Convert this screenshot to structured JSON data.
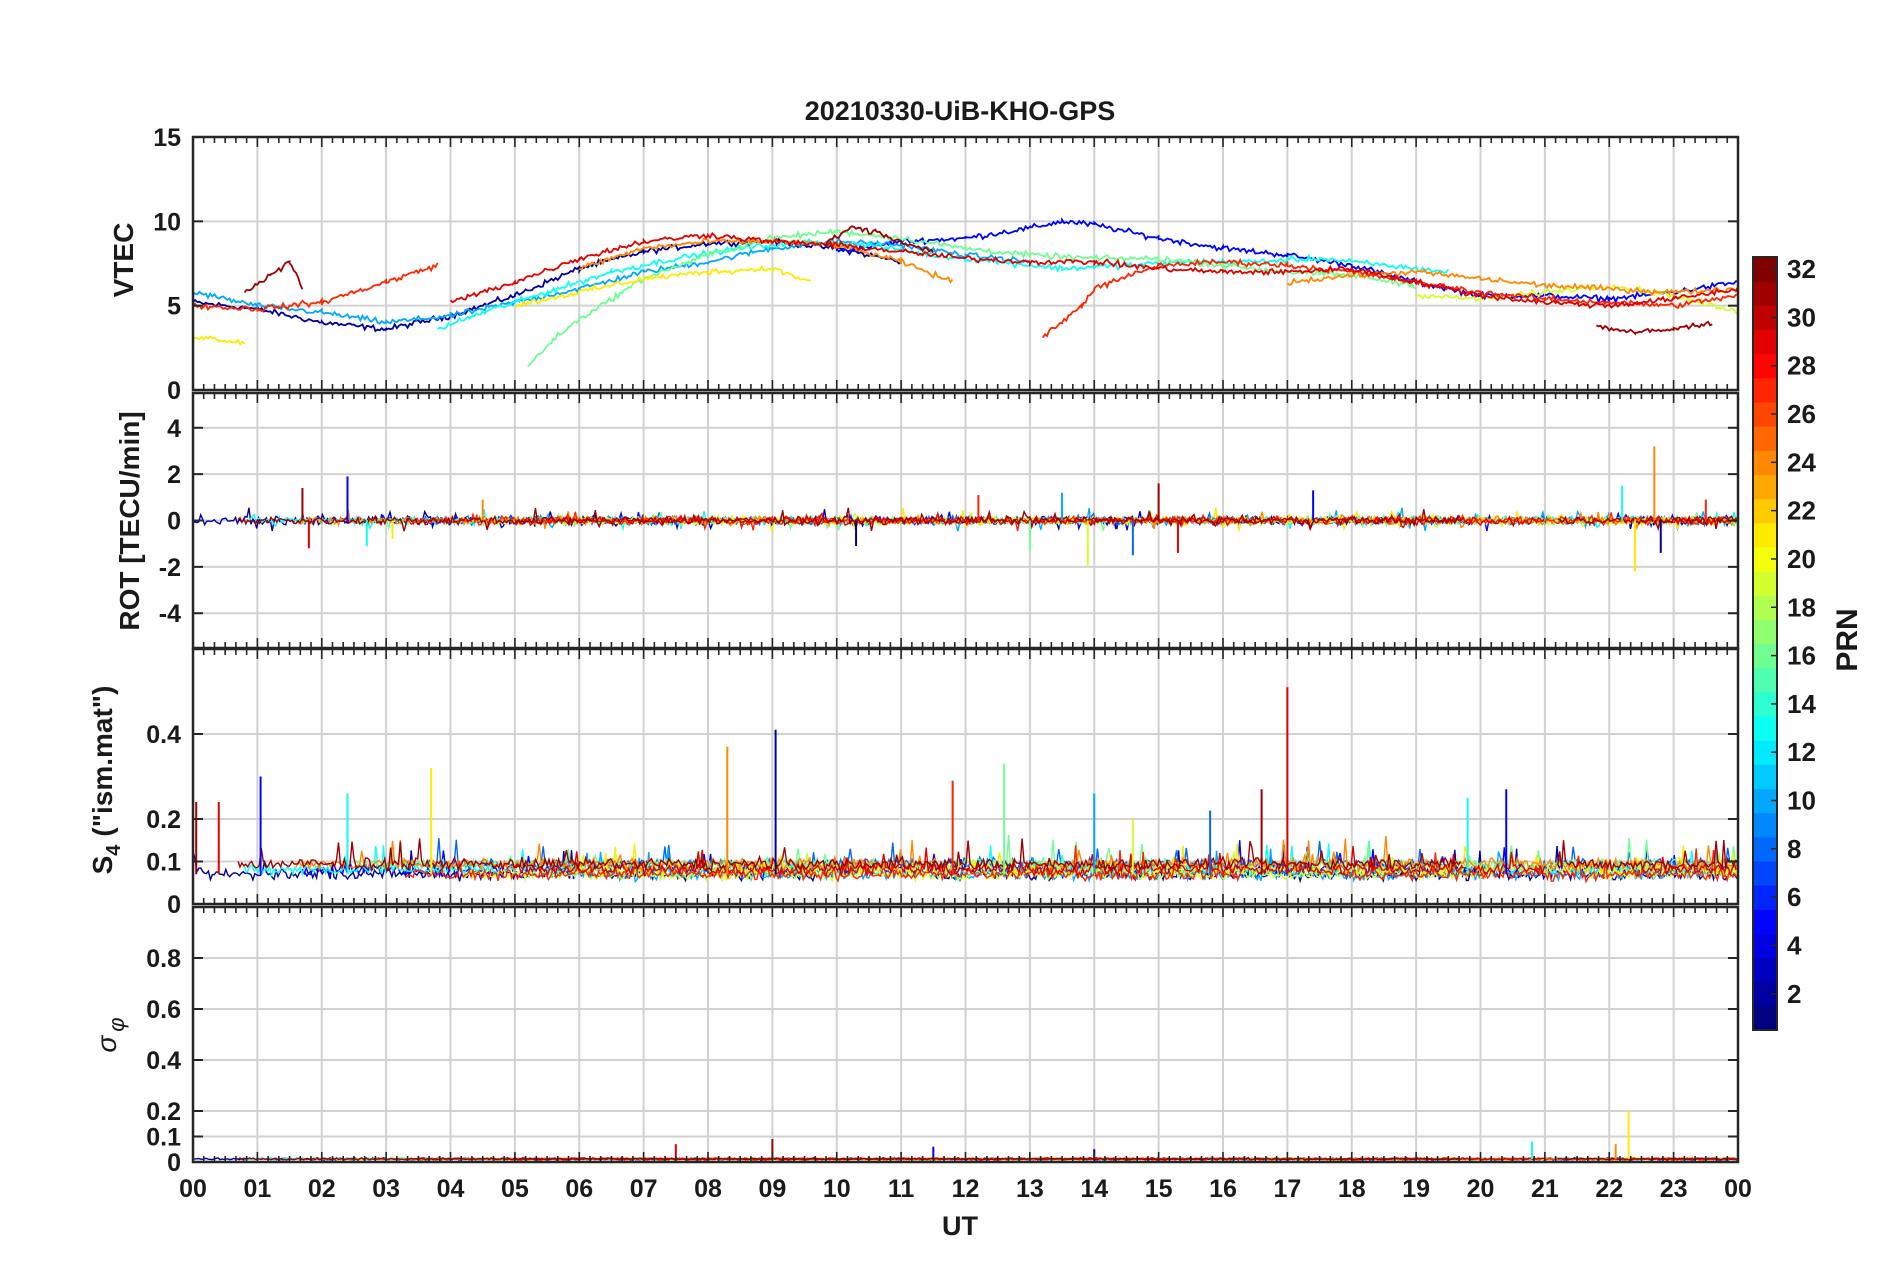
{
  "chart_data": [
    {
      "type": "line",
      "title": "20210330-UiB-KHO-GPS",
      "ylabel": "VTEC",
      "ylim": [
        0,
        15
      ],
      "yticks": [
        0,
        5,
        10,
        15
      ],
      "xlim": [
        0,
        24
      ],
      "series_color": "PRN (jet colormap 1-32)",
      "note": "many overlapping PRN traces; values approximate",
      "series": [
        {
          "name": "PRN 2",
          "x": [
            0,
            1,
            2,
            3,
            4,
            5,
            6,
            7,
            8,
            9,
            10,
            11
          ],
          "y": [
            5.2,
            4.8,
            4.0,
            3.6,
            4.4,
            5.6,
            7.2,
            8.2,
            8.7,
            8.8,
            8.4,
            7.6
          ]
        },
        {
          "name": "PRN 5",
          "x": [
            10,
            11,
            12,
            13,
            13.5,
            14,
            15,
            16,
            17,
            18,
            19,
            20,
            21,
            22,
            23,
            24
          ],
          "y": [
            8.2,
            8.8,
            9.0,
            9.6,
            10.0,
            9.8,
            9.0,
            8.4,
            8.0,
            7.4,
            6.4,
            5.6,
            5.6,
            5.4,
            5.8,
            6.4
          ]
        },
        {
          "name": "PRN 10",
          "x": [
            0,
            1,
            2,
            3,
            4,
            5,
            6,
            7,
            8,
            9,
            10,
            11,
            12,
            13
          ],
          "y": [
            5.8,
            5.0,
            4.6,
            4.0,
            4.4,
            5.2,
            6.0,
            7.0,
            7.6,
            8.4,
            8.8,
            8.6,
            8.0,
            7.6
          ]
        },
        {
          "name": "PRN 13",
          "x": [
            3.8,
            4.5,
            5.5,
            6.5,
            7.5,
            8.5,
            9.5,
            10.5,
            11.5,
            12.5,
            13.5,
            14.5,
            15.5,
            16.5,
            17.5,
            18.5,
            19.5
          ],
          "y": [
            3.6,
            4.6,
            5.8,
            7.0,
            7.8,
            8.4,
            8.8,
            8.6,
            8.0,
            7.6,
            7.2,
            7.4,
            7.6,
            7.6,
            7.8,
            7.4,
            7.0
          ]
        },
        {
          "name": "PRN 16",
          "x": [
            5.2,
            5.6,
            6.0,
            7,
            8,
            9,
            10,
            11,
            12,
            13,
            14,
            15,
            16,
            17,
            18,
            19
          ],
          "y": [
            1.4,
            3.0,
            4.2,
            6.6,
            8.0,
            9.0,
            9.4,
            9.0,
            8.4,
            8.0,
            7.8,
            7.8,
            7.4,
            7.0,
            6.8,
            6.2
          ]
        },
        {
          "name": "PRN 19",
          "x": [
            19,
            20,
            21,
            22,
            23,
            24
          ],
          "y": [
            5.6,
            5.4,
            5.8,
            6.2,
            5.6,
            4.6
          ]
        },
        {
          "name": "PRN 21",
          "x": [
            0,
            0.4,
            0.8,
            5,
            6,
            7,
            8,
            9,
            9.6
          ],
          "y": [
            3.2,
            3.0,
            2.8,
            5.0,
            5.8,
            6.6,
            7.0,
            7.2,
            6.4
          ]
        },
        {
          "name": "PRN 24",
          "x": [
            6,
            7,
            8,
            9,
            10,
            11,
            11.8,
            17,
            18,
            19,
            20,
            21,
            22,
            23,
            24
          ],
          "y": [
            7.2,
            8.4,
            8.8,
            8.8,
            8.6,
            7.6,
            6.4,
            6.4,
            6.8,
            7.0,
            6.6,
            6.2,
            6.0,
            5.8,
            6.0
          ]
        },
        {
          "name": "PRN 27",
          "x": [
            0,
            1,
            2,
            3,
            3.8,
            13.2,
            13.5,
            13.8,
            14,
            15,
            16,
            17,
            18,
            19,
            20,
            21,
            22,
            23,
            24
          ],
          "y": [
            5.0,
            4.8,
            5.2,
            6.4,
            7.4,
            3.2,
            4.0,
            5.0,
            6.0,
            7.4,
            7.6,
            7.4,
            7.0,
            6.4,
            5.8,
            5.4,
            5.2,
            5.0,
            5.6
          ]
        },
        {
          "name": "PRN 29",
          "x": [
            4,
            5,
            6,
            7,
            8,
            9,
            10,
            11,
            12,
            13,
            14,
            15,
            16,
            17,
            18,
            19,
            20,
            21,
            22,
            23,
            24
          ],
          "y": [
            5.2,
            6.4,
            7.8,
            8.8,
            9.2,
            8.8,
            8.6,
            8.2,
            7.8,
            7.6,
            7.6,
            7.2,
            7.0,
            7.0,
            7.2,
            6.4,
            5.6,
            5.2,
            5.0,
            5.4,
            6.0
          ]
        },
        {
          "name": "PRN 31",
          "x": [
            0.8,
            1.2,
            1.5,
            1.7,
            9.8,
            10.2,
            10.6,
            11,
            11.5,
            21.8,
            22.4,
            23,
            23.6
          ],
          "y": [
            5.8,
            6.8,
            7.6,
            6.0,
            8.6,
            9.6,
            9.4,
            8.8,
            8.2,
            3.8,
            3.4,
            3.6,
            4.0
          ]
        }
      ]
    },
    {
      "type": "line",
      "ylabel": "ROT [TECU/min]",
      "ylim": [
        -5.5,
        5.5
      ],
      "yticks": [
        -4,
        -2,
        0,
        2,
        4
      ],
      "xlim": [
        0,
        24
      ],
      "note": "noisy rate-of-TEC traces centered near 0",
      "baseline": 0,
      "peaks": [
        {
          "x": 1.7,
          "y": 1.4
        },
        {
          "x": 1.8,
          "y": -1.2
        },
        {
          "x": 2.4,
          "y": 1.9
        },
        {
          "x": 2.7,
          "y": -1.1
        },
        {
          "x": 3.1,
          "y": -0.8
        },
        {
          "x": 4.5,
          "y": 0.9
        },
        {
          "x": 10.3,
          "y": -1.1
        },
        {
          "x": 12.2,
          "y": 1.1
        },
        {
          "x": 13.0,
          "y": -1.3
        },
        {
          "x": 13.5,
          "y": 1.2
        },
        {
          "x": 13.9,
          "y": -2.0
        },
        {
          "x": 14.6,
          "y": -1.5
        },
        {
          "x": 15.0,
          "y": 1.6
        },
        {
          "x": 15.3,
          "y": -1.4
        },
        {
          "x": 17.4,
          "y": 1.3
        },
        {
          "x": 22.2,
          "y": 1.5
        },
        {
          "x": 22.4,
          "y": -2.2
        },
        {
          "x": 22.7,
          "y": 3.2
        },
        {
          "x": 22.8,
          "y": -1.4
        },
        {
          "x": 23.5,
          "y": 0.9
        }
      ]
    },
    {
      "type": "line",
      "ylabel": "S₄ (\"ism.mat\")",
      "ylabel_main": "S",
      "ylabel_sub": "4",
      "ylabel_rest": "(\"ism.mat\")",
      "ylim": [
        0,
        0.6
      ],
      "yticks": [
        0,
        0.1,
        0.2,
        0.4
      ],
      "xlim": [
        0,
        24
      ],
      "note": "noisy scintillation index traces near 0.05-0.15",
      "peaks": [
        {
          "x": 0.05,
          "y": 0.24
        },
        {
          "x": 0.4,
          "y": 0.24
        },
        {
          "x": 1.05,
          "y": 0.3
        },
        {
          "x": 2.4,
          "y": 0.26
        },
        {
          "x": 3.7,
          "y": 0.32
        },
        {
          "x": 8.3,
          "y": 0.37
        },
        {
          "x": 9.05,
          "y": 0.41
        },
        {
          "x": 11.8,
          "y": 0.29
        },
        {
          "x": 12.6,
          "y": 0.33
        },
        {
          "x": 14.0,
          "y": 0.26
        },
        {
          "x": 14.6,
          "y": 0.2
        },
        {
          "x": 15.8,
          "y": 0.22
        },
        {
          "x": 16.6,
          "y": 0.27
        },
        {
          "x": 17.0,
          "y": 0.51
        },
        {
          "x": 20.4,
          "y": 0.27
        },
        {
          "x": 19.8,
          "y": 0.25
        }
      ]
    },
    {
      "type": "line",
      "ylabel": "σ φ",
      "ylabel_main": "σ",
      "ylabel_sub": "φ",
      "ylim": [
        0,
        1
      ],
      "yticks": [
        0,
        0.1,
        0.2,
        0.4,
        0.6,
        0.8
      ],
      "xlim": [
        0,
        24
      ],
      "xlabel": "UT",
      "xticks": [
        "00",
        "01",
        "02",
        "03",
        "04",
        "05",
        "06",
        "07",
        "08",
        "09",
        "10",
        "11",
        "12",
        "13",
        "14",
        "15",
        "16",
        "17",
        "18",
        "19",
        "20",
        "21",
        "22",
        "23",
        "00"
      ],
      "note": "phase scintillation near zero",
      "peaks": [
        {
          "x": 9.0,
          "y": 0.09
        },
        {
          "x": 7.5,
          "y": 0.07
        },
        {
          "x": 11.5,
          "y": 0.06
        },
        {
          "x": 20.8,
          "y": 0.08
        },
        {
          "x": 22.3,
          "y": 0.2
        },
        {
          "x": 22.1,
          "y": 0.07
        },
        {
          "x": 14.0,
          "y": 0.05
        }
      ]
    }
  ],
  "colorbar": {
    "label": "PRN",
    "min": 1,
    "max": 32,
    "ticks": [
      "2",
      "4",
      "6",
      "8",
      "10",
      "12",
      "14",
      "16",
      "18",
      "20",
      "22",
      "24",
      "26",
      "28",
      "30",
      "32"
    ],
    "colormap": "jet"
  },
  "colors": {
    "grid": "#d2d2d2",
    "axis": "#262626"
  }
}
